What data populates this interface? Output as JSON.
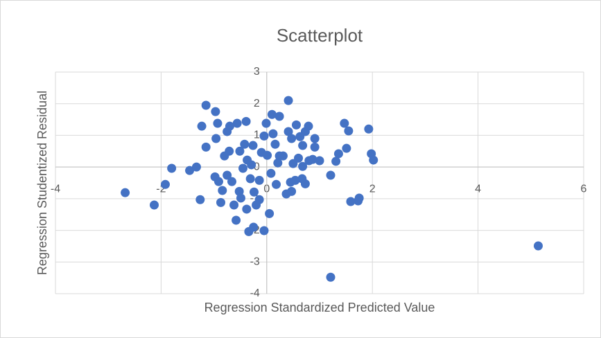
{
  "chart_data": {
    "type": "scatter",
    "title": "Scatterplot",
    "x_label": "Regression Standardized Predicted Value",
    "y_label": "Regression Studentized Residual",
    "xlim": [
      -4,
      6
    ],
    "xticks": [
      -4,
      -2,
      0,
      2,
      4,
      6
    ],
    "ylim": [
      -4,
      3
    ],
    "yticks": [
      -4,
      -3,
      -2,
      -1,
      0,
      1,
      2,
      3
    ],
    "grid": true,
    "color": "#4472c4",
    "x": [
      -2.68,
      -2.13,
      -1.92,
      -1.8,
      -1.46,
      -1.33,
      -1.23,
      -1.15,
      -1.26,
      -1.15,
      -0.97,
      -0.93,
      -0.96,
      -0.98,
      -0.91,
      -0.87,
      -0.84,
      -0.8,
      -0.75,
      -0.7,
      -0.71,
      -0.75,
      -0.66,
      -0.62,
      -0.56,
      -0.51,
      -0.58,
      -0.52,
      -0.49,
      -0.45,
      -0.42,
      -0.39,
      -0.37,
      -0.34,
      -0.38,
      -0.31,
      -0.29,
      -0.26,
      -0.25,
      -0.24,
      -0.2,
      -0.14,
      -0.14,
      -0.1,
      -0.05,
      -0.05,
      -0.01,
      0.01,
      0.05,
      0.08,
      0.1,
      0.12,
      0.16,
      0.18,
      0.21,
      0.24,
      0.24,
      0.31,
      0.37,
      0.41,
      0.41,
      0.45,
      0.47,
      0.47,
      0.5,
      0.54,
      0.56,
      0.6,
      0.63,
      0.67,
      0.68,
      0.68,
      0.73,
      0.73,
      0.79,
      0.8,
      0.87,
      0.91,
      0.91,
      1.0,
      1.21,
      1.31,
      1.36,
      1.47,
      1.51,
      1.55,
      1.59,
      1.73,
      1.75,
      1.93,
      1.98,
      2.02,
      5.14,
      1.21
    ],
    "values": [
      -0.81,
      -1.2,
      -0.55,
      -0.04,
      -0.11,
      0,
      1.29,
      0.63,
      -1.03,
      1.95,
      1.75,
      1.38,
      0.9,
      -0.31,
      -0.46,
      -1.12,
      -0.74,
      0.35,
      1.12,
      1.29,
      0.5,
      -0.26,
      -0.46,
      -1.2,
      1.38,
      0.5,
      -1.68,
      -0.77,
      -0.98,
      -0.04,
      0.72,
      1.44,
      0.22,
      -2.04,
      -1.33,
      -0.37,
      0.07,
      0.68,
      -1.9,
      -0.79,
      -1.2,
      -0.42,
      -1.03,
      0.46,
      -2.01,
      0.98,
      1.38,
      0.37,
      -1.47,
      -0.2,
      1.66,
      1.05,
      0.72,
      -0.55,
      0.13,
      1.6,
      0.35,
      0.35,
      -0.85,
      2.1,
      1.12,
      -0.48,
      -0.77,
      0.9,
      0.11,
      -0.42,
      1.33,
      0.28,
      0.96,
      -0.37,
      0.02,
      0.68,
      1.12,
      -0.53,
      1.29,
      0.2,
      0.24,
      0.63,
      0.9,
      0.2,
      -0.26,
      0.18,
      0.42,
      1.38,
      0.59,
      1.14,
      -1.09,
      -1.07,
      -0.98,
      1.2,
      0.42,
      0.22,
      -2.49,
      -3.48
    ]
  }
}
